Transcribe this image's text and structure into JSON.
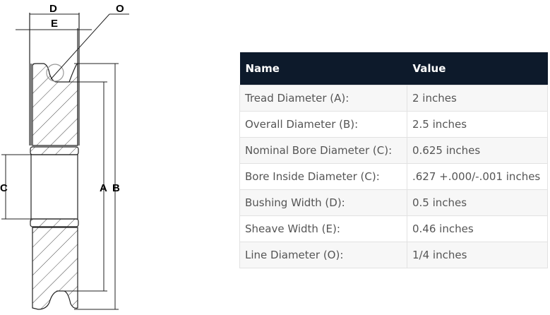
{
  "diagram": {
    "labels": {
      "D": "D",
      "E": "E",
      "O": "O",
      "A": "A",
      "B": "B",
      "C": "C"
    }
  },
  "table": {
    "headers": [
      "Name",
      "Value"
    ],
    "rows": [
      {
        "name": "Tread Diameter (A):",
        "value": "2 inches"
      },
      {
        "name": "Overall Diameter (B):",
        "value": "2.5 inches"
      },
      {
        "name": "Nominal Bore Diameter (C):",
        "value": "0.625 inches"
      },
      {
        "name": "Bore Inside Diameter (C):",
        "value": ".627 +.000/-.001 inches"
      },
      {
        "name": "Bushing Width (D):",
        "value": "0.5 inches"
      },
      {
        "name": "Sheave Width (E):",
        "value": "0.46 inches"
      },
      {
        "name": "Line Diameter (O):",
        "value": "1/4 inches"
      }
    ]
  },
  "colors": {
    "header_bg": "#0d1a2b"
  }
}
